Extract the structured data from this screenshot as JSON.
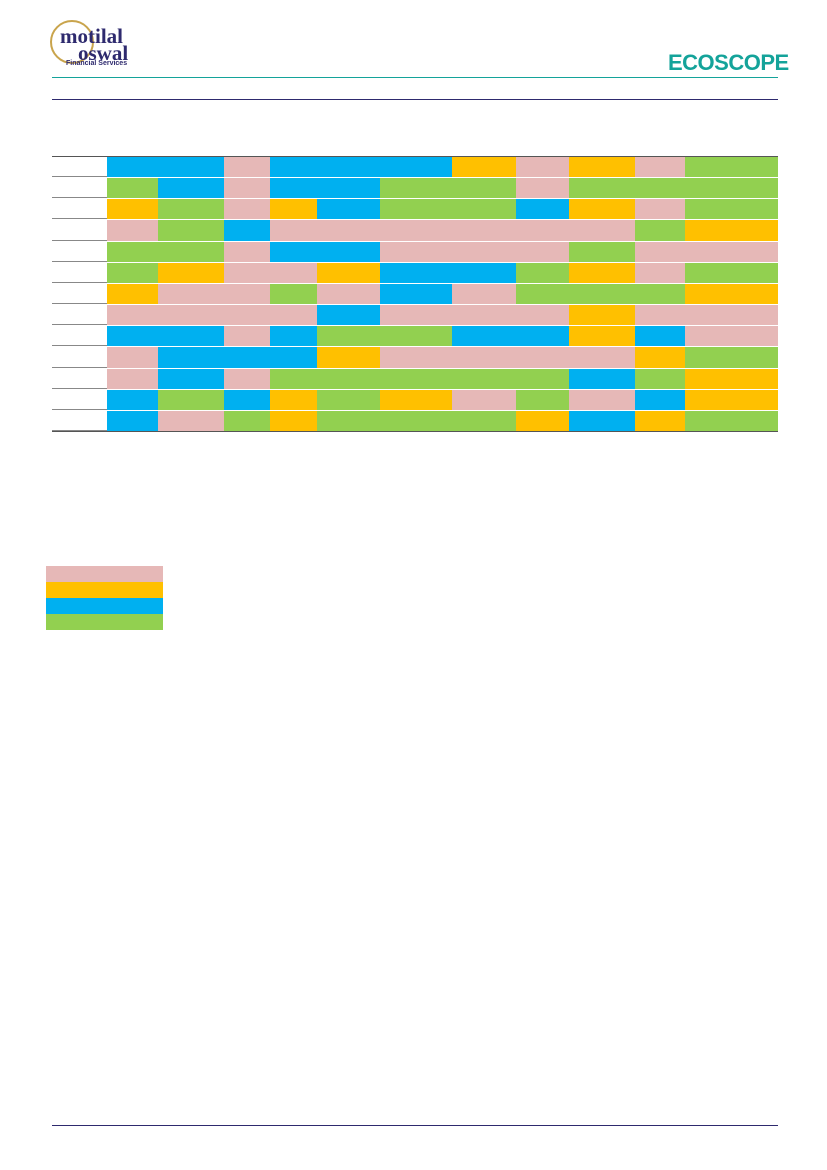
{
  "header": {
    "brand_line1": "motilal",
    "brand_line2": "oswal",
    "brand_sub": "Financial Services",
    "product": "EcoScope"
  },
  "grid": {
    "columns": [
      107,
      158,
      224,
      270,
      317,
      380,
      452,
      516,
      569,
      635,
      685,
      778
    ],
    "palette": {
      "P": "#e6b8b7",
      "O": "#ffc000",
      "B": "#00b0f0",
      "G": "#92d050"
    },
    "rows": [
      "BBPBBBOPOPG",
      "GBPBBGGPGGG",
      "OGPOBGGBOPG",
      "PGBPPPPPPGO",
      "GGPBBPPPGPP",
      "GOPPOBBGOPG",
      "OPPGPBPGGGO",
      "PPPPBPPPOPP",
      "BBPBGGBBOBP",
      "PBBBOPPPPOG",
      "PBPGGGGGBGO",
      "BGBOGOPGPBO",
      "BPGOGGGOBOG"
    ]
  },
  "legend": [
    "P",
    "O",
    "B",
    "G"
  ]
}
